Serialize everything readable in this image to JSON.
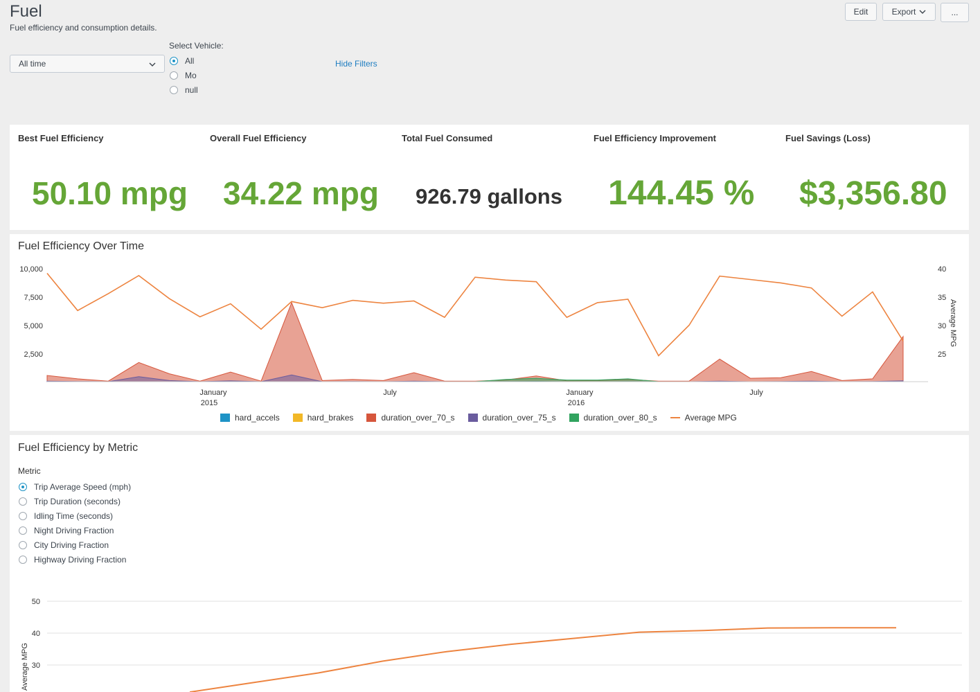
{
  "header": {
    "title": "Fuel",
    "subtitle": "Fuel efficiency and consumption details.",
    "buttons": {
      "edit": "Edit",
      "export": "Export",
      "more": "..."
    }
  },
  "filters": {
    "time_range": "All time",
    "vehicle_label": "Select Vehicle:",
    "vehicle_options": [
      "All",
      "Mo",
      "null"
    ],
    "vehicle_selected": "All",
    "hide_filters": "Hide Filters"
  },
  "kpis": [
    {
      "label": "Best Fuel Efficiency",
      "value": "50.10 mpg",
      "color": "#65a637"
    },
    {
      "label": "Overall Fuel Efficiency",
      "value": "34.22 mpg",
      "color": "#65a637"
    },
    {
      "label": "Total Fuel Consumed",
      "value": "926.79",
      "unit": "gallons",
      "color": "#333333"
    },
    {
      "label": "Fuel Efficiency Improvement",
      "value": "144.45 %",
      "color": "#65a637"
    },
    {
      "label": "Fuel Savings (Loss)",
      "value": "$3,356.80",
      "color": "#65a637"
    }
  ],
  "over_time": {
    "title": "Fuel Efficiency Over Time",
    "y_left_ticks": [
      "10,000",
      "7,500",
      "5,000",
      "2,500"
    ],
    "y_right_ticks": [
      "40",
      "35",
      "30",
      "25"
    ],
    "y_right_label": "Average MPG",
    "x_ticks": [
      {
        "label": "January",
        "sub": "2015"
      },
      {
        "label": "July",
        "sub": ""
      },
      {
        "label": "January",
        "sub": "2016"
      },
      {
        "label": "July",
        "sub": ""
      }
    ],
    "legend": [
      {
        "name": "hard_accels",
        "color": "#1e93c6",
        "kind": "area"
      },
      {
        "name": "hard_brakes",
        "color": "#f2b827",
        "kind": "area"
      },
      {
        "name": "duration_over_70_s",
        "color": "#d6563c",
        "kind": "area"
      },
      {
        "name": "duration_over_75_s",
        "color": "#6a5c9e",
        "kind": "area"
      },
      {
        "name": "duration_over_80_s",
        "color": "#31a35f",
        "kind": "area"
      },
      {
        "name": "Average MPG",
        "color": "#ed8440",
        "kind": "line"
      }
    ]
  },
  "by_metric": {
    "title": "Fuel Efficiency by Metric",
    "metric_label": "Metric",
    "options": [
      "Trip Average Speed (mph)",
      "Trip Duration (seconds)",
      "Idling Time (seconds)",
      "Night Driving Fraction",
      "City Driving Fraction",
      "Highway Driving Fraction"
    ],
    "selected": "Trip Average Speed (mph)",
    "y_ticks": [
      "50",
      "40",
      "30"
    ],
    "y_label": "Average MPG"
  },
  "chart_data": [
    {
      "type": "area",
      "title": "Fuel Efficiency Over Time",
      "ylim": [
        0,
        10000
      ],
      "y2lim": [
        20,
        40
      ],
      "y2label": "Average MPG",
      "x_labels": [
        "January 2015",
        "July",
        "January 2016",
        "July"
      ],
      "series": [
        {
          "name": "duration_over_70_s",
          "values": [
            550,
            250,
            50,
            1700,
            700,
            50,
            850,
            50,
            7000,
            100,
            200,
            100,
            800,
            50,
            50,
            150,
            500,
            80,
            100,
            200,
            50,
            50,
            2000,
            300,
            350,
            900,
            100,
            250,
            4000
          ]
        },
        {
          "name": "duration_over_75_s",
          "values": [
            50,
            20,
            0,
            450,
            100,
            0,
            80,
            0,
            600,
            0,
            20,
            0,
            50,
            0,
            0,
            10,
            30,
            0,
            0,
            20,
            0,
            0,
            50,
            0,
            20,
            50,
            0,
            20,
            80
          ]
        },
        {
          "name": "duration_over_80_s",
          "values": [
            0,
            0,
            0,
            0,
            0,
            0,
            0,
            0,
            0,
            0,
            0,
            0,
            0,
            0,
            0,
            200,
            300,
            150,
            150,
            250,
            0,
            0,
            0,
            0,
            0,
            0,
            0,
            0,
            0
          ]
        },
        {
          "name": "Average MPG",
          "axis": "right",
          "values": [
            39.2,
            32.6,
            35.6,
            38.8,
            34.7,
            31.5,
            33.8,
            29.3,
            34.2,
            33.1,
            34.4,
            33.9,
            34.3,
            31.4,
            38.5,
            38.0,
            37.7,
            31.4,
            34.0,
            34.6,
            24.6,
            30.0,
            38.7,
            38.1,
            37.5,
            36.6,
            31.6,
            35.9,
            27.2
          ]
        }
      ]
    },
    {
      "type": "line",
      "title": "Fuel Efficiency by Metric",
      "ylabel": "Average MPG",
      "ylim": [
        20,
        55
      ],
      "series": [
        {
          "name": "Average MPG",
          "values": [
            21.5,
            24.5,
            27.5,
            31.2,
            34.2,
            36.5,
            38.4,
            40.3,
            40.8,
            41.6,
            41.7,
            41.7
          ]
        }
      ]
    }
  ]
}
